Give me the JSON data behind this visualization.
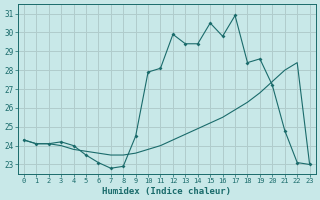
{
  "xlabel": "Humidex (Indice chaleur)",
  "xlim": [
    -0.5,
    23.5
  ],
  "ylim": [
    22.5,
    31.5
  ],
  "yticks": [
    23,
    24,
    25,
    26,
    27,
    28,
    29,
    30,
    31
  ],
  "xticks": [
    0,
    1,
    2,
    3,
    4,
    5,
    6,
    7,
    8,
    9,
    10,
    11,
    12,
    13,
    14,
    15,
    16,
    17,
    18,
    19,
    20,
    21,
    22,
    23
  ],
  "bg_color": "#c8e8e8",
  "line_color": "#1a6b6b",
  "grid_color": "#b0cccc",
  "series1_x": [
    0,
    1,
    2,
    3,
    4,
    5,
    6,
    7,
    8,
    9,
    10,
    11,
    12,
    13,
    14,
    15,
    16,
    17,
    18,
    19,
    20,
    21,
    22,
    23
  ],
  "series1_y": [
    24.3,
    24.1,
    24.1,
    24.2,
    24.0,
    23.5,
    23.1,
    22.8,
    22.9,
    24.5,
    27.9,
    28.1,
    29.9,
    29.4,
    29.4,
    30.5,
    29.8,
    30.9,
    28.4,
    28.6,
    27.2,
    24.8,
    23.1,
    23.0
  ],
  "series2_x": [
    0,
    1,
    2,
    3,
    4,
    5,
    6,
    7,
    8,
    9,
    10,
    11,
    12,
    13,
    14,
    15,
    16,
    17,
    18,
    19,
    20,
    21,
    22,
    23
  ],
  "series2_y": [
    24.3,
    24.1,
    24.1,
    24.0,
    23.8,
    23.7,
    23.6,
    23.5,
    23.5,
    23.6,
    23.8,
    24.0,
    24.3,
    24.6,
    24.9,
    25.2,
    25.5,
    25.9,
    26.3,
    26.8,
    27.4,
    28.0,
    28.4,
    23.0
  ]
}
